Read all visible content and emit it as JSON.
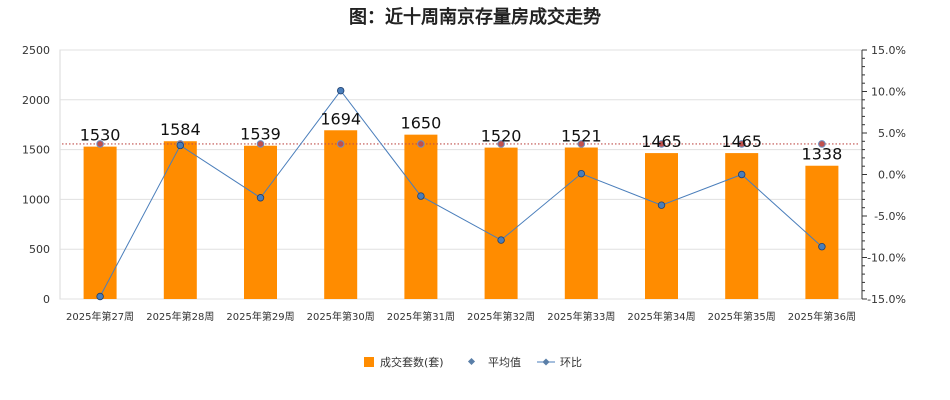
{
  "chart_data": {
    "type": "bar",
    "title": "图：近十周南京存量房成交走势",
    "categories": [
      "2025年第27周",
      "2025年第28周",
      "2025年第29周",
      "2025年第30周",
      "2025年第31周",
      "2025年第32周",
      "2025年第33周",
      "2025年第34周",
      "2025年第35周",
      "2025年第36周"
    ],
    "series": [
      {
        "name": "成交套数(套)",
        "type": "bar",
        "axis": "left",
        "color": "#FF8C00",
        "values": [
          1530,
          1584,
          1539,
          1694,
          1650,
          1520,
          1521,
          1465,
          1465,
          1338
        ]
      },
      {
        "name": "平均值",
        "type": "line",
        "axis": "left",
        "color": "#C0504D",
        "values": [
          1557,
          1557,
          1557,
          1557,
          1557,
          1557,
          1557,
          1557,
          1557,
          1557
        ]
      },
      {
        "name": "环比",
        "type": "line",
        "axis": "right",
        "color": "#4A7EBB",
        "values": [
          -14.7,
          3.5,
          -2.8,
          10.1,
          -2.6,
          -7.9,
          0.1,
          -3.7,
          0.0,
          -8.7
        ]
      }
    ],
    "y_left": {
      "min": 0,
      "max": 2500,
      "ticks": [
        "0",
        "500",
        "1000",
        "1500",
        "2000",
        "2500"
      ]
    },
    "y_right": {
      "min": -15,
      "max": 15,
      "ticks": [
        "-15.0%",
        "-10.0%",
        "-5.0%",
        "0.0%",
        "5.0%",
        "10.0%",
        "15.0%"
      ]
    },
    "grid": true,
    "legend_position": "bottom"
  }
}
